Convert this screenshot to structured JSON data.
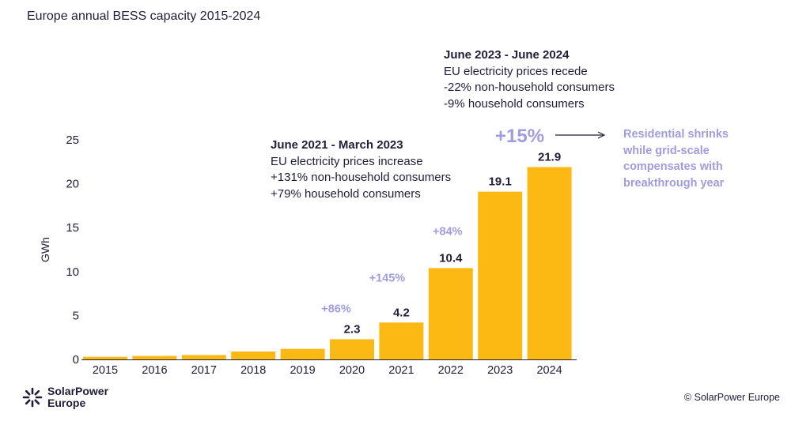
{
  "title": "Europe annual BESS capacity 2015-2024",
  "chart_data": {
    "type": "bar",
    "title": "Europe annual BESS capacity 2015-2024",
    "xlabel": "",
    "ylabel": "GWh",
    "ylim": [
      0,
      25
    ],
    "yticks": [
      "0",
      "5",
      "10",
      "15",
      "20",
      "25"
    ],
    "categories": [
      "2015",
      "2016",
      "2017",
      "2018",
      "2019",
      "2020",
      "2021",
      "2022",
      "2023",
      "2024"
    ],
    "values": [
      0.3,
      0.4,
      0.5,
      0.9,
      1.2,
      2.3,
      4.2,
      10.4,
      19.1,
      21.9
    ],
    "data_labels": [
      "",
      "",
      "",
      "",
      "",
      "2.3",
      "4.2",
      "10.4",
      "19.1",
      "21.9"
    ],
    "growth_labels": [
      {
        "category": "2020",
        "text": "+86%"
      },
      {
        "category": "2021",
        "text": "+145%"
      },
      {
        "category": "2022",
        "text": "+84%"
      },
      {
        "category": "2024",
        "text": "+15%"
      }
    ],
    "bar_color": "#fdb913",
    "growth_color": "#a09ce0",
    "grid": false
  },
  "annotations": {
    "note_a": {
      "head": "June 2021 - March 2023",
      "lines": [
        "EU electricity prices increase",
        "+131% non-household consumers",
        "+79% household consumers"
      ]
    },
    "note_b": {
      "head": "June 2023 - June 2024",
      "lines": [
        "EU electricity prices recede",
        "-22% non-household consumers",
        "-9% household consumers"
      ]
    },
    "callout": "Residential shrinks while grid-scale compensates with breakthrough year"
  },
  "footer": {
    "logo_line1": "SolarPower",
    "logo_line2": "Europe",
    "copyright": "© SolarPower Europe"
  }
}
